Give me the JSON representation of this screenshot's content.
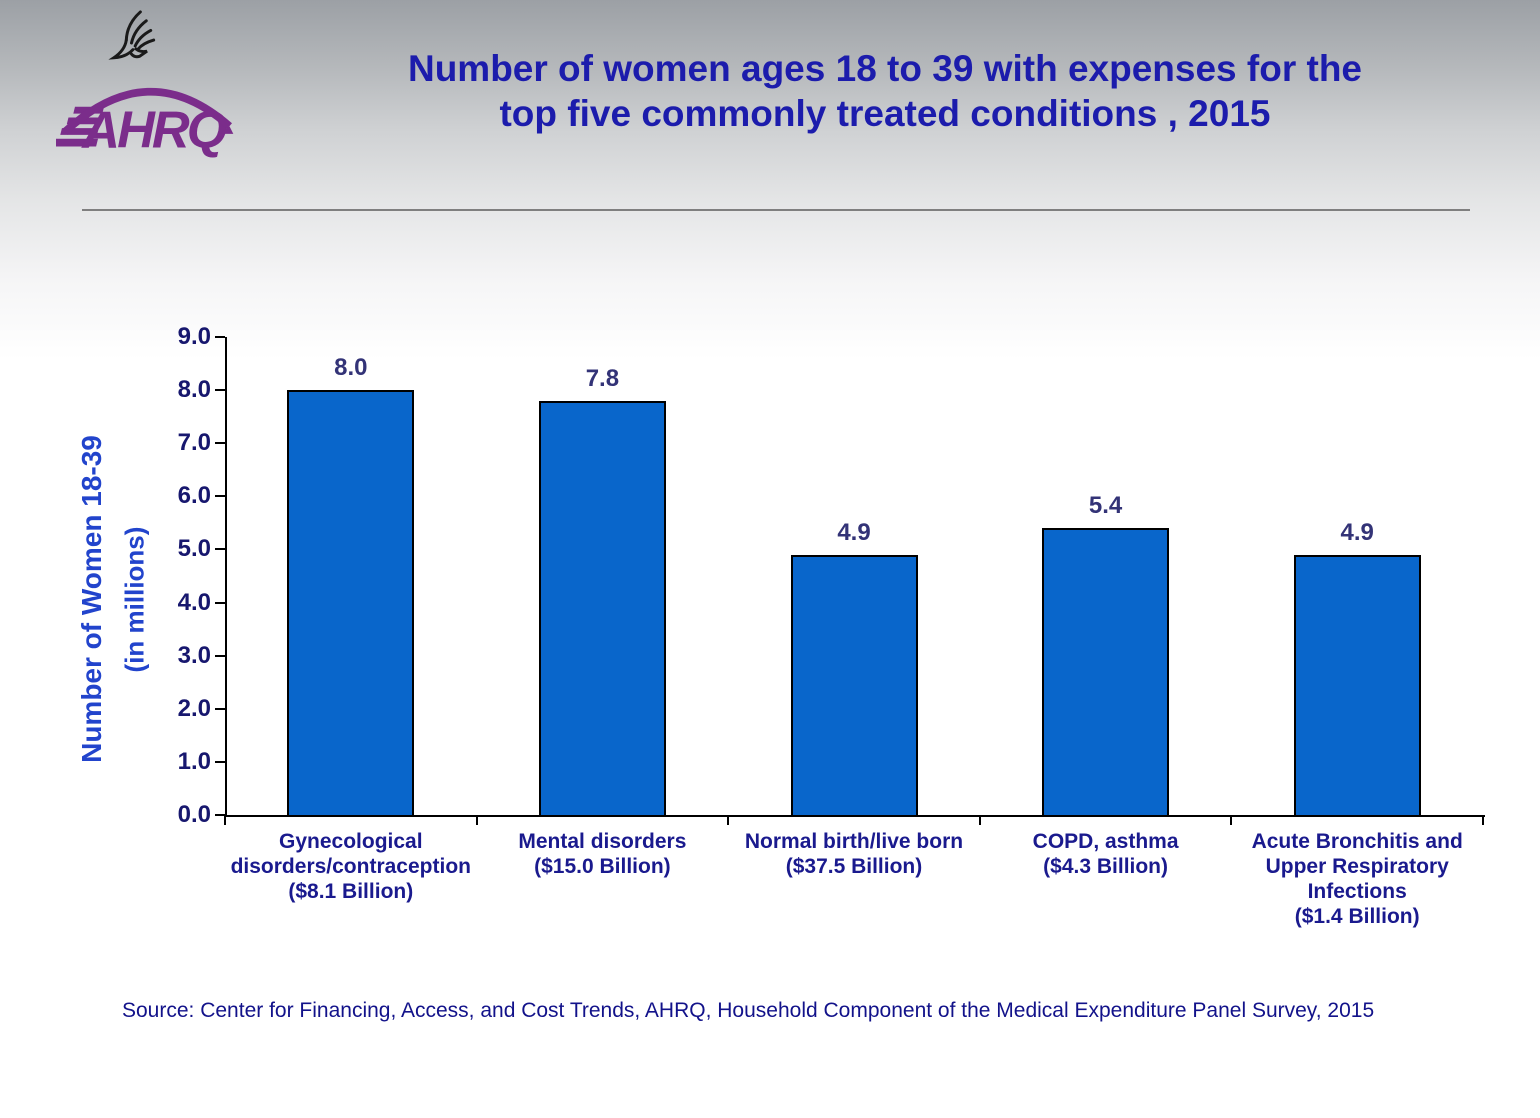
{
  "header": {
    "logo": {
      "hhs_eagle_icon": "hhs-eagle",
      "ahrq_text": "AHRQ",
      "brand_purple": "#7b2d8b",
      "eagle_black": "#1a1a1a"
    },
    "title_line1": "Number of women ages 18 to 39 with expenses for the",
    "title_line2": "top five commonly treated conditions , 2015"
  },
  "chart_data": {
    "type": "bar",
    "title": "Number of women ages 18 to 39 with expenses for the top five commonly treated conditions , 2015",
    "categories": [
      "Gynecological\ndisorders/contraception\n($8.1 Billion)",
      "Mental disorders\n($15.0 Billion)",
      "Normal birth/live born\n($37.5 Billion)",
      "COPD, asthma\n($4.3 Billion)",
      "Acute Bronchitis and\nUpper Respiratory\nInfections\n($1.4 Billion)"
    ],
    "values": [
      8.0,
      7.8,
      4.9,
      5.4,
      4.9
    ],
    "value_labels": [
      "8.0",
      "7.8",
      "4.9",
      "5.4",
      "4.9"
    ],
    "ylabel_line1": "Number of Women 18-39",
    "ylabel_line2": "(in millions)",
    "xlabel": "",
    "ylim": [
      0,
      9
    ],
    "ytick_step": 1.0,
    "yticks": [
      "0.0",
      "1.0",
      "2.0",
      "3.0",
      "4.0",
      "5.0",
      "6.0",
      "7.0",
      "8.0",
      "9.0"
    ],
    "grid": false,
    "legend": "none",
    "bar_color": "#0966cb",
    "bar_border_color": "#000000",
    "value_label_color": "#333377",
    "axis_label_color": "#17176e",
    "category_label_color": "#1a1a8e",
    "yaxis_title_color": "#2244cc"
  },
  "footer": {
    "source": "Source: Center for Financing, Access, and Cost Trends, AHRQ, Household Component of the Medical Expenditure Panel Survey, 2015"
  }
}
